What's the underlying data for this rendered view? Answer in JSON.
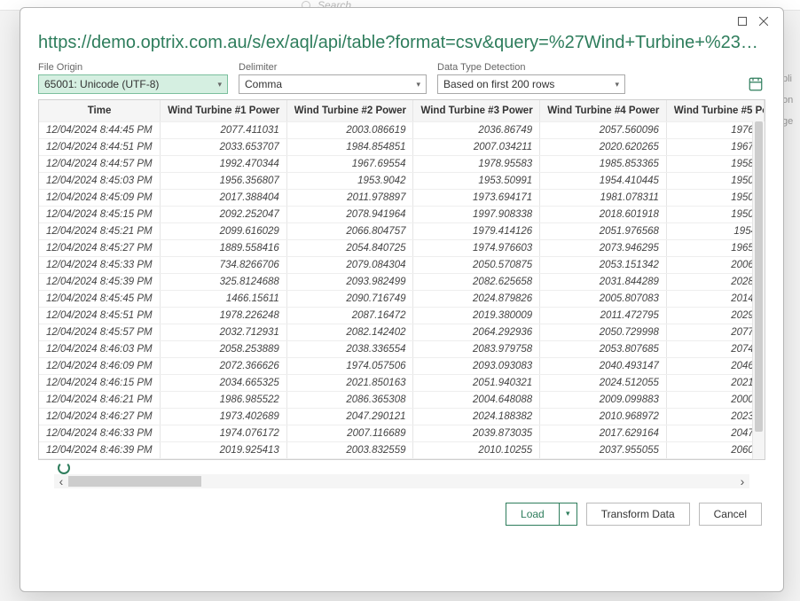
{
  "background": {
    "search_placeholder": "Search",
    "right_stub_1": "pli",
    "right_stub_2": "on",
    "right_stub_3": "ge"
  },
  "title_url": "https://demo.optrix.com.au/s/ex/aql/api/table?format=csv&query=%27Wind+Turbine+%231%2...",
  "options": {
    "file_origin": {
      "label": "File Origin",
      "value": "65001: Unicode (UTF-8)"
    },
    "delimiter": {
      "label": "Delimiter",
      "value": "Comma"
    },
    "detection": {
      "label": "Data Type Detection",
      "value": "Based on first 200 rows"
    }
  },
  "buttons": {
    "load": "Load",
    "transform": "Transform Data",
    "cancel": "Cancel"
  },
  "table": {
    "columns": [
      "Time",
      "Wind Turbine #1 Power",
      "Wind Turbine #2 Power",
      "Wind Turbine #3 Power",
      "Wind Turbine #4 Power",
      "Wind Turbine #5 Po"
    ],
    "rows": [
      [
        "12/04/2024 8:44:45 PM",
        "2077.411031",
        "2003.086619",
        "2036.86749",
        "2057.560096",
        "1976."
      ],
      [
        "12/04/2024 8:44:51 PM",
        "2033.653707",
        "1984.854851",
        "2007.034211",
        "2020.620265",
        "1967."
      ],
      [
        "12/04/2024 8:44:57 PM",
        "1992.470344",
        "1967.69554",
        "1978.95583",
        "1985.853365",
        "1958."
      ],
      [
        "12/04/2024 8:45:03 PM",
        "1956.356807",
        "1953.9042",
        "1953.50991",
        "1954.410445",
        "1950."
      ],
      [
        "12/04/2024 8:45:09 PM",
        "2017.388404",
        "2011.978897",
        "1973.694171",
        "1981.078311",
        "1950."
      ],
      [
        "12/04/2024 8:45:15 PM",
        "2092.252047",
        "2078.941964",
        "1997.908338",
        "2018.601918",
        "1950."
      ],
      [
        "12/04/2024 8:45:21 PM",
        "2099.616029",
        "2066.804757",
        "1979.414126",
        "2051.976568",
        "1954"
      ],
      [
        "12/04/2024 8:45:27 PM",
        "1889.558416",
        "2054.840725",
        "1974.976603",
        "2073.946295",
        "1965."
      ],
      [
        "12/04/2024 8:45:33 PM",
        "734.8266706",
        "2079.084304",
        "2050.570875",
        "2053.151342",
        "2006."
      ],
      [
        "12/04/2024 8:45:39 PM",
        "325.8124688",
        "2093.982499",
        "2082.625658",
        "2031.844289",
        "2028."
      ],
      [
        "12/04/2024 8:45:45 PM",
        "1466.15611",
        "2090.716749",
        "2024.879826",
        "2005.807083",
        "2014."
      ],
      [
        "12/04/2024 8:45:51 PM",
        "1978.226248",
        "2087.16472",
        "2019.380009",
        "2011.472795",
        "2029."
      ],
      [
        "12/04/2024 8:45:57 PM",
        "2032.712931",
        "2082.142402",
        "2064.292936",
        "2050.729998",
        "2077."
      ],
      [
        "12/04/2024 8:46:03 PM",
        "2058.253889",
        "2038.336554",
        "2083.979758",
        "2053.807685",
        "2074."
      ],
      [
        "12/04/2024 8:46:09 PM",
        "2072.366626",
        "1974.057506",
        "2093.093083",
        "2040.493147",
        "2046."
      ],
      [
        "12/04/2024 8:46:15 PM",
        "2034.665325",
        "2021.850163",
        "2051.940321",
        "2024.512055",
        "2021."
      ],
      [
        "12/04/2024 8:46:21 PM",
        "1986.985522",
        "2086.365308",
        "2004.648088",
        "2009.099883",
        "2000."
      ],
      [
        "12/04/2024 8:46:27 PM",
        "1973.402689",
        "2047.290121",
        "2024.188382",
        "2010.968972",
        "2023."
      ],
      [
        "12/04/2024 8:46:33 PM",
        "1974.076172",
        "2007.116689",
        "2039.873035",
        "2017.629164",
        "2047."
      ],
      [
        "12/04/2024 8:46:39 PM",
        "2019.925413",
        "2003.832559",
        "2010.10255",
        "2037.955055",
        "2060."
      ]
    ]
  }
}
